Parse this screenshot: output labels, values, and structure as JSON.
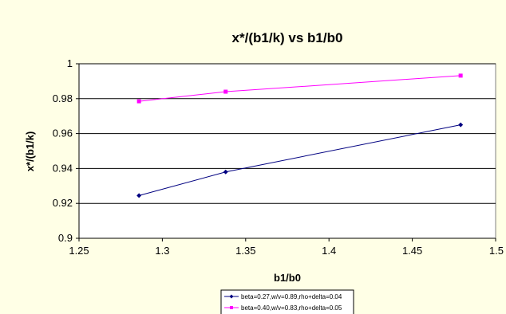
{
  "chart_data": {
    "type": "line",
    "title": "x*/(b1/k) vs b1/b0",
    "xlabel": "b1/b0",
    "ylabel": "x*/(b1/k)",
    "xlim": [
      1.25,
      1.5
    ],
    "ylim": [
      0.9,
      1.0
    ],
    "x_ticks": [
      1.25,
      1.3,
      1.35,
      1.4,
      1.45,
      1.5
    ],
    "y_ticks": [
      0.9,
      0.92,
      0.94,
      0.96,
      0.98,
      1.0
    ],
    "x_tick_labels": [
      "1.25",
      "1.3",
      "1.35",
      "1.4",
      "1.45",
      "1.5"
    ],
    "y_tick_labels": [
      "0.9",
      "0.92",
      "0.94",
      "0.96",
      "0.98",
      "1"
    ],
    "grid": "horizontal",
    "legend_position": "bottom",
    "series": [
      {
        "name": "beta=0.27,w/v=0.89,rho+delta=0.04",
        "color": "#000080",
        "marker": "diamond",
        "x": [
          1.286,
          1.338,
          1.479
        ],
        "y": [
          0.9245,
          0.938,
          0.965
        ]
      },
      {
        "name": "beta=0.40,w/v=0.83,rho+delta=0.05",
        "color": "#FF00FF",
        "marker": "square",
        "x": [
          1.286,
          1.338,
          1.479
        ],
        "y": [
          0.9785,
          0.984,
          0.9932
        ]
      }
    ]
  },
  "colors": {
    "background": "#FFFFE6",
    "plot_background": "#FFFFFF",
    "gridline": "#000000"
  }
}
